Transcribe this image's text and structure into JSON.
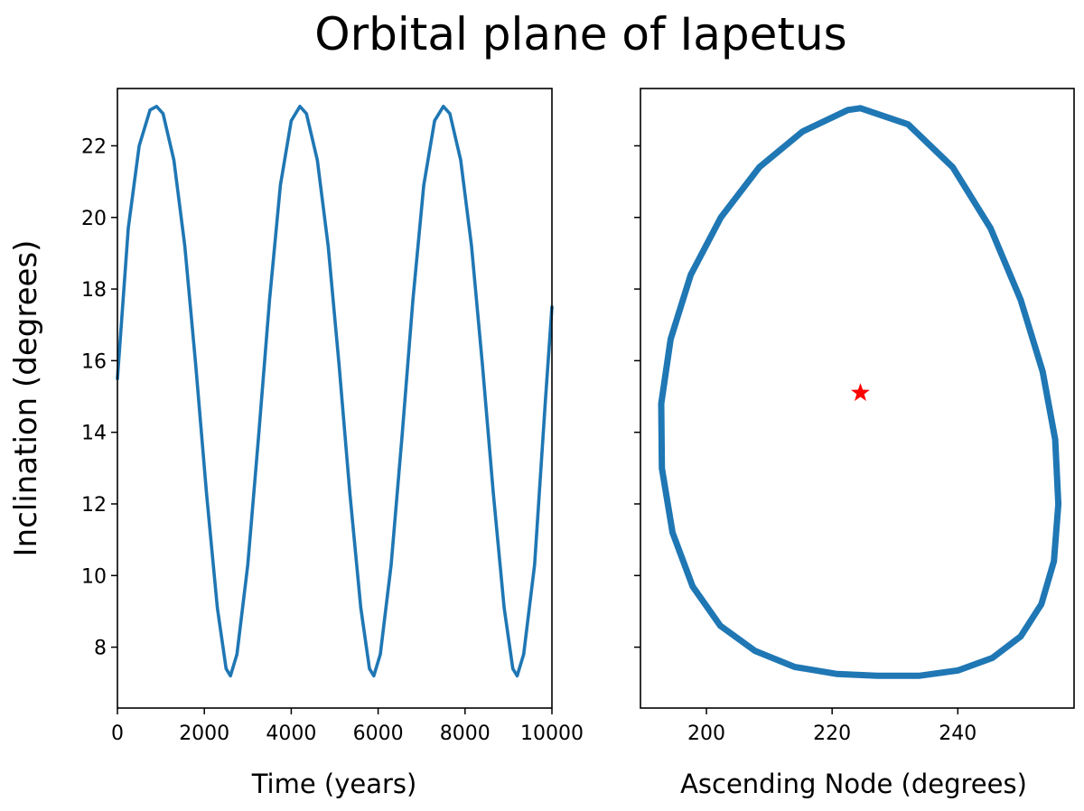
{
  "figure": {
    "title": "Orbital plane of Iapetus"
  },
  "chart_data": [
    {
      "type": "line",
      "title": "",
      "xlabel": "Time (years)",
      "ylabel": "Inclination (degrees)",
      "xlim": [
        0,
        10000
      ],
      "ylim": [
        6.3,
        23.6
      ],
      "xticks": [
        "0",
        "2000",
        "4000",
        "6000",
        "8000",
        "10000"
      ],
      "yticks": [
        "8",
        "10",
        "12",
        "14",
        "16",
        "18",
        "20",
        "22"
      ],
      "grid": false,
      "color": "#1f77b4",
      "series": [
        {
          "x": [
            0,
            250,
            500,
            750,
            900,
            1050,
            1300,
            1550,
            1800,
            2050,
            2300,
            2500,
            2600,
            2750,
            3000,
            3250,
            3500,
            3750,
            4000,
            4200,
            4350,
            4600,
            4850,
            5100,
            5350,
            5600,
            5800,
            5900,
            6050,
            6300,
            6550,
            6800,
            7050,
            7300,
            7500,
            7650,
            7900,
            8150,
            8400,
            8650,
            8900,
            9100,
            9200,
            9350,
            9600,
            9850,
            10000
          ],
          "y": [
            15.5,
            19.7,
            22.0,
            23.0,
            23.1,
            22.9,
            21.6,
            19.2,
            15.9,
            12.3,
            9.1,
            7.4,
            7.2,
            7.8,
            10.3,
            13.9,
            17.7,
            20.9,
            22.7,
            23.1,
            22.9,
            21.6,
            19.2,
            15.9,
            12.3,
            9.1,
            7.4,
            7.2,
            7.8,
            10.3,
            13.9,
            17.7,
            20.9,
            22.7,
            23.1,
            22.9,
            21.6,
            19.2,
            15.9,
            12.3,
            9.1,
            7.4,
            7.2,
            7.8,
            10.3,
            14.9,
            17.5
          ]
        }
      ]
    },
    {
      "type": "scatter",
      "title": "",
      "xlabel": "Ascending Node (degrees)",
      "ylabel": "",
      "xlim": [
        189.5,
        258.5
      ],
      "ylim": [
        6.3,
        23.6
      ],
      "xticks": [
        "200",
        "220",
        "240"
      ],
      "yticks": [],
      "grid": false,
      "color": "#1f77b4",
      "series": [
        {
          "x": [
            224.5,
            232.1,
            239.2,
            245.2,
            250.0,
            253.5,
            255.5,
            256.0,
            255.3,
            253.3,
            250.0,
            245.5,
            240.0,
            233.8,
            227.2,
            220.8,
            214.0,
            207.7,
            202.2,
            197.8,
            194.6,
            192.9,
            192.8,
            194.3,
            197.5,
            202.3,
            208.4,
            215.3,
            222.5
          ],
          "y": [
            23.05,
            22.6,
            21.4,
            19.7,
            17.7,
            15.7,
            13.8,
            12.0,
            10.4,
            9.2,
            8.3,
            7.7,
            7.35,
            7.2,
            7.2,
            7.25,
            7.45,
            7.9,
            8.6,
            9.7,
            11.2,
            13.0,
            14.8,
            16.6,
            18.4,
            20.0,
            21.4,
            22.4,
            23.0
          ]
        },
        {
          "name": "",
          "marker": "star",
          "color": "#ff0000",
          "x": [
            224.5
          ],
          "y": [
            15.1
          ]
        }
      ]
    }
  ]
}
